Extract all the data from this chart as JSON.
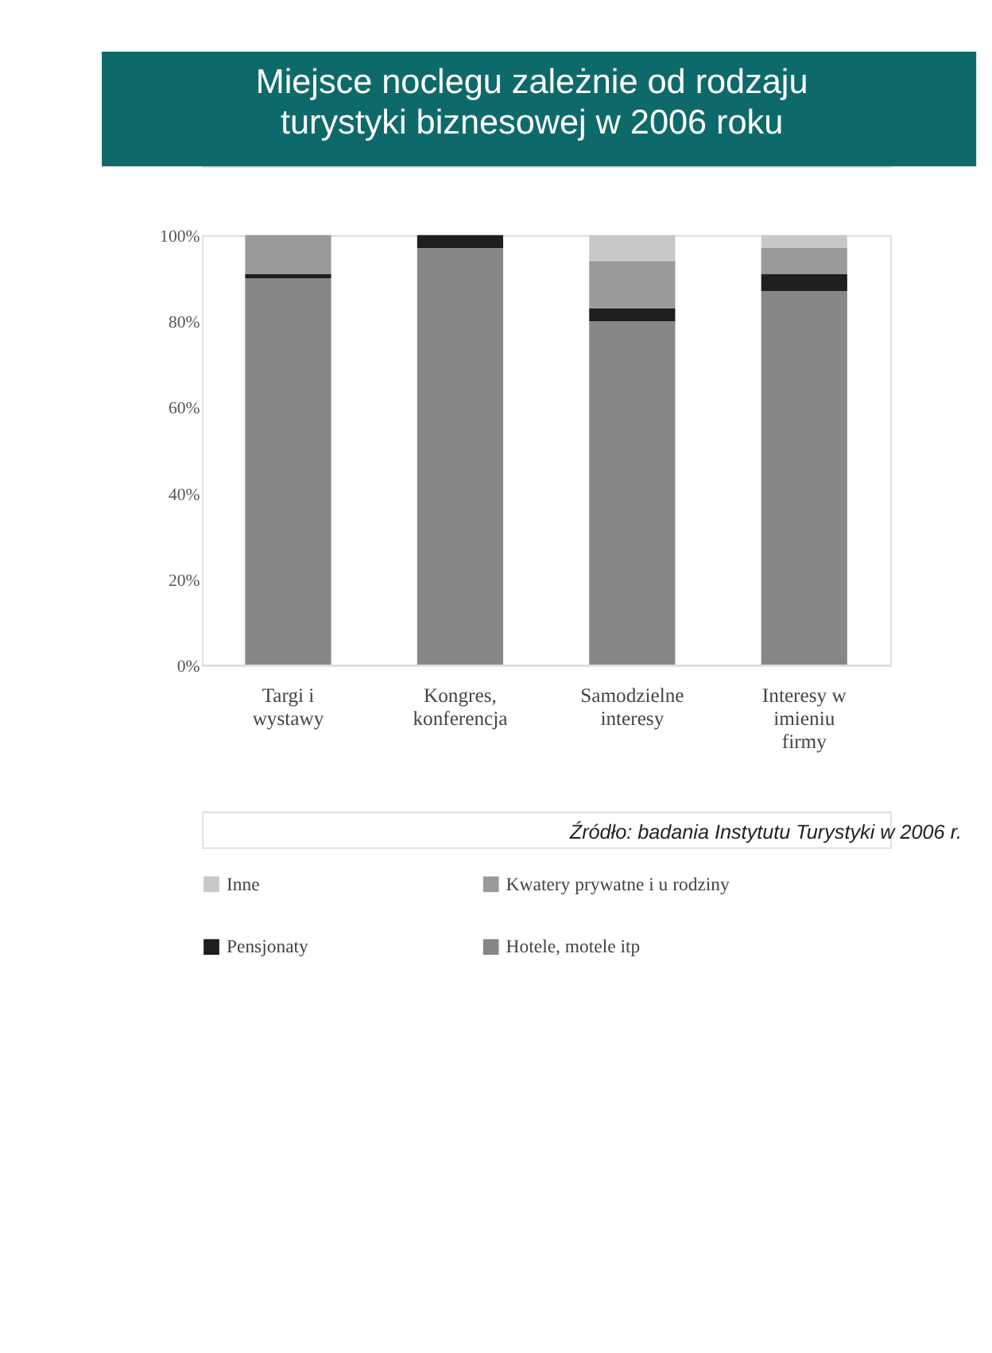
{
  "chart_data": {
    "type": "bar",
    "title": "Miejsce noclegu zależnie od rodzaju turystyki biznesowej w 2006 roku",
    "categories": [
      "Targi i wystawy",
      "Kongres, konferencja",
      "Samodzielne interesy",
      "Interesy w imieniu firmy"
    ],
    "stacked": true,
    "series": [
      {
        "name": "Hotele, motele itp",
        "color": "#878787",
        "values": [
          90,
          97,
          80,
          87
        ]
      },
      {
        "name": "Pensjonaty",
        "color": "#1e1e1e",
        "values": [
          1,
          3,
          3,
          4
        ]
      },
      {
        "name": "Kwatery prywatne i u rodziny",
        "color": "#9a9a9a",
        "values": [
          9,
          0,
          11,
          6
        ]
      },
      {
        "name": "Inne",
        "color": "#c8c8c8",
        "values": [
          0,
          0,
          6,
          3
        ]
      }
    ],
    "ylim": [
      0,
      100
    ],
    "yticks": [
      {
        "value": 0,
        "label": "0%"
      },
      {
        "value": 20,
        "label": "20%"
      },
      {
        "value": 40,
        "label": "40%"
      },
      {
        "value": 60,
        "label": "60%"
      },
      {
        "value": 80,
        "label": "80%"
      },
      {
        "value": 100,
        "label": "100%"
      }
    ],
    "grid": false,
    "legend": "bottom",
    "annotations": [
      "Źródło: badania Instytutu Turystyki w 2006 r."
    ]
  }
}
